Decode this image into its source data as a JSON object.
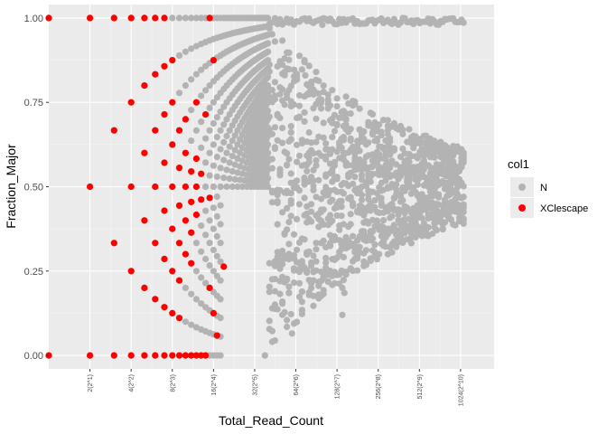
{
  "chart_data": {
    "type": "scatter",
    "xlabel": "Total_Read_Count",
    "ylabel": "Fraction_Major",
    "x_scale": "log2",
    "xlim": [
      1,
      1800
    ],
    "ylim": [
      -0.04,
      1.04
    ],
    "x_ticks": [
      {
        "value": 2,
        "label": "2(2^1)"
      },
      {
        "value": 4,
        "label": "4(2^2)"
      },
      {
        "value": 8,
        "label": "8(2^3)"
      },
      {
        "value": 16,
        "label": "16(2^4)"
      },
      {
        "value": 32,
        "label": "32(2^5)"
      },
      {
        "value": 64,
        "label": "64(2^6)"
      },
      {
        "value": 128,
        "label": "128(2^7)"
      },
      {
        "value": 256,
        "label": "256(2^8)"
      },
      {
        "value": 512,
        "label": "512(2^9)"
      },
      {
        "value": 1024,
        "label": "1024(2^10)"
      }
    ],
    "y_ticks": [
      {
        "value": 0.0,
        "label": "0.00"
      },
      {
        "value": 0.25,
        "label": "0.25"
      },
      {
        "value": 0.5,
        "label": "0.50"
      },
      {
        "value": 0.75,
        "label": "0.75"
      },
      {
        "value": 1.0,
        "label": "1.00"
      }
    ],
    "grid": true,
    "legend": {
      "title": "col1",
      "placement": "right",
      "entries": [
        {
          "label": "N",
          "color": "#b3b3b3"
        },
        {
          "label": "XClescape",
          "color": "#ff0000"
        }
      ]
    },
    "series": [
      {
        "name": "N",
        "color": "#b3b3b3",
        "rule": "for each total read count n from 1 to 1100 (integers), points at fraction k/n for k from ceil(n/2) to n; dense near 0.5, spreads toward 1.0; plus mirror lower values for small n",
        "sparse_points": [
          {
            "x": 140,
            "y": 0.2
          },
          {
            "x": 145,
            "y": 0.185
          },
          {
            "x": 140,
            "y": 0.12
          },
          {
            "x": 60,
            "y": 0.065
          },
          {
            "x": 38,
            "y": 0.0
          },
          {
            "x": 55,
            "y": 0.85
          },
          {
            "x": 75,
            "y": 0.83
          },
          {
            "x": 100,
            "y": 0.98
          }
        ]
      },
      {
        "name": "XClescape",
        "color": "#ff0000",
        "points": [
          {
            "x": 1,
            "y": 1.0
          },
          {
            "x": 1,
            "y": 0.0
          },
          {
            "x": 2,
            "y": 1.0
          },
          {
            "x": 2,
            "y": 0.5
          },
          {
            "x": 2,
            "y": 0.0
          },
          {
            "x": 3,
            "y": 1.0
          },
          {
            "x": 3,
            "y": 0.667
          },
          {
            "x": 3,
            "y": 0.333
          },
          {
            "x": 3,
            "y": 0.0
          },
          {
            "x": 4,
            "y": 1.0
          },
          {
            "x": 4,
            "y": 0.75
          },
          {
            "x": 4,
            "y": 0.5
          },
          {
            "x": 4,
            "y": 0.25
          },
          {
            "x": 4,
            "y": 0.0
          },
          {
            "x": 5,
            "y": 1.0
          },
          {
            "x": 5,
            "y": 0.8
          },
          {
            "x": 5,
            "y": 0.6
          },
          {
            "x": 5,
            "y": 0.4
          },
          {
            "x": 5,
            "y": 0.2
          },
          {
            "x": 5,
            "y": 0.0
          },
          {
            "x": 6,
            "y": 1.0
          },
          {
            "x": 6,
            "y": 0.833
          },
          {
            "x": 6,
            "y": 0.667
          },
          {
            "x": 6,
            "y": 0.5
          },
          {
            "x": 6,
            "y": 0.333
          },
          {
            "x": 6,
            "y": 0.167
          },
          {
            "x": 6,
            "y": 0.0
          },
          {
            "x": 7,
            "y": 1.0
          },
          {
            "x": 7,
            "y": 0.857
          },
          {
            "x": 7,
            "y": 0.714
          },
          {
            "x": 7,
            "y": 0.571
          },
          {
            "x": 7,
            "y": 0.429
          },
          {
            "x": 7,
            "y": 0.286
          },
          {
            "x": 7,
            "y": 0.143
          },
          {
            "x": 7,
            "y": 0.0
          },
          {
            "x": 8,
            "y": 0.875
          },
          {
            "x": 8,
            "y": 0.75
          },
          {
            "x": 8,
            "y": 0.625
          },
          {
            "x": 8,
            "y": 0.5
          },
          {
            "x": 8,
            "y": 0.375
          },
          {
            "x": 8,
            "y": 0.25
          },
          {
            "x": 8,
            "y": 0.125
          },
          {
            "x": 8,
            "y": 0.0
          },
          {
            "x": 9,
            "y": 0.667
          },
          {
            "x": 9,
            "y": 0.556
          },
          {
            "x": 9,
            "y": 0.444
          },
          {
            "x": 9,
            "y": 0.333
          },
          {
            "x": 9,
            "y": 0.222
          },
          {
            "x": 9,
            "y": 0.111
          },
          {
            "x": 9,
            "y": 0.0
          },
          {
            "x": 10,
            "y": 0.7
          },
          {
            "x": 10,
            "y": 0.6
          },
          {
            "x": 10,
            "y": 0.5
          },
          {
            "x": 10,
            "y": 0.4
          },
          {
            "x": 10,
            "y": 0.3
          },
          {
            "x": 10,
            "y": 0.0
          },
          {
            "x": 11,
            "y": 0.545
          },
          {
            "x": 11,
            "y": 0.455
          },
          {
            "x": 11,
            "y": 0.364
          },
          {
            "x": 11,
            "y": 0.273
          },
          {
            "x": 11,
            "y": 0.0
          },
          {
            "x": 12,
            "y": 0.75
          },
          {
            "x": 12,
            "y": 0.583
          },
          {
            "x": 12,
            "y": 0.5
          },
          {
            "x": 12,
            "y": 0.417
          },
          {
            "x": 12,
            "y": 0.0
          },
          {
            "x": 13,
            "y": 0.538
          },
          {
            "x": 13,
            "y": 0.462
          },
          {
            "x": 13,
            "y": 0.0
          },
          {
            "x": 14,
            "y": 0.714
          },
          {
            "x": 14,
            "y": 0.0
          },
          {
            "x": 15,
            "y": 1.0
          },
          {
            "x": 15,
            "y": 0.467
          },
          {
            "x": 15,
            "y": 0.2
          },
          {
            "x": 16,
            "y": 0.875
          },
          {
            "x": 16,
            "y": 0.125
          },
          {
            "x": 17,
            "y": 0.059
          },
          {
            "x": 19,
            "y": 0.263
          }
        ]
      }
    ]
  }
}
